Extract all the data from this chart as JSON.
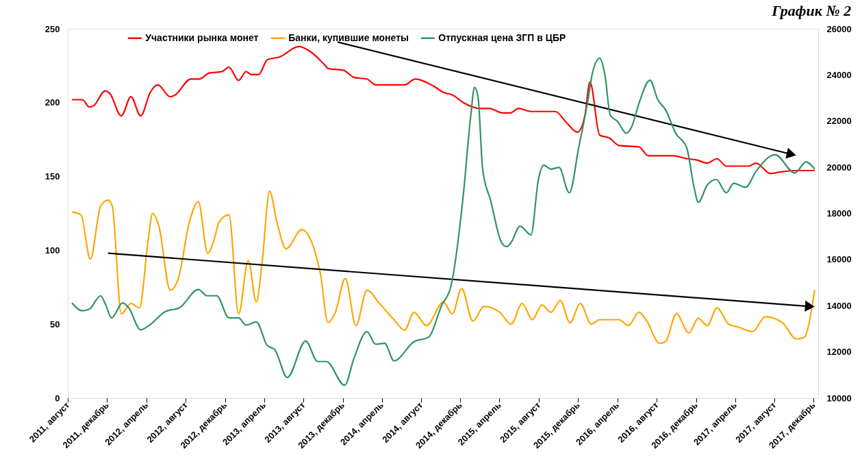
{
  "chart_data": {
    "type": "line",
    "title": "График № 2",
    "marker": "none",
    "grid": false,
    "legend": "top",
    "line_style": "solid",
    "xlim": [
      "2011-08-01",
      "2017-12-15"
    ],
    "xticks": [
      {
        "value": "2011-08",
        "label": "2011, август"
      },
      {
        "value": "2011-12",
        "label": "2011, декабрь"
      },
      {
        "value": "2012-04",
        "label": "2012, апрель"
      },
      {
        "value": "2012-08",
        "label": "2012, август"
      },
      {
        "value": "2012-12",
        "label": "2012, декабрь"
      },
      {
        "value": "2013-04",
        "label": "2013, апрель"
      },
      {
        "value": "2013-08",
        "label": "2013, август"
      },
      {
        "value": "2013-12",
        "label": "2013, декабрь"
      },
      {
        "value": "2014-04",
        "label": "2014, апрель"
      },
      {
        "value": "2014-08",
        "label": "2014, август"
      },
      {
        "value": "2014-12",
        "label": "2014, декабрь"
      },
      {
        "value": "2015-04",
        "label": "2015, апрель"
      },
      {
        "value": "2015-08",
        "label": "2015, август"
      },
      {
        "value": "2015-12",
        "label": "2015, декабрь"
      },
      {
        "value": "2016-04",
        "label": "2016, апрель"
      },
      {
        "value": "2016-08",
        "label": "2016, август"
      },
      {
        "value": "2016-12",
        "label": "2016, декабрь"
      },
      {
        "value": "2017-04",
        "label": "2017, апрель"
      },
      {
        "value": "2017-08",
        "label": "2017, август"
      },
      {
        "value": "2017-12",
        "label": "2017, декабрь"
      }
    ],
    "ylim": [
      0,
      250
    ],
    "yticks": [
      0,
      50,
      100,
      150,
      200,
      250
    ],
    "y2lim": [
      10000,
      26000
    ],
    "y2ticks": [
      10000,
      12000,
      14000,
      16000,
      18000,
      20000,
      22000,
      24000,
      26000
    ],
    "series": [
      {
        "name": "Участники рынка монет",
        "color": "#ff0000",
        "x": [
          "2011-08-14",
          "2011-09-15",
          "2011-10-07",
          "2011-10-21",
          "2011-11-25",
          "2011-12-10",
          "2012-01-14",
          "2012-02-13",
          "2012-03-14",
          "2012-04-13",
          "2012-05-06",
          "2012-06-14",
          "2012-06-28",
          "2012-08-17",
          "2012-09-13",
          "2012-10-12",
          "2012-11-21",
          "2012-12-13",
          "2013-01-12",
          "2013-02-04",
          "2013-02-20",
          "2013-03-15",
          "2013-04-11",
          "2013-05-20",
          "2013-07-18",
          "2013-08-26",
          "2013-10-04",
          "2013-10-18",
          "2013-12-02",
          "2014-01-06",
          "2014-02-14",
          "2014-03-13",
          "2014-06-11",
          "2014-07-14",
          "2014-09-10",
          "2014-10-09",
          "2014-11-08",
          "2014-12-10",
          "2015-02-01",
          "2015-02-28",
          "2015-04-12",
          "2015-05-05",
          "2015-05-30",
          "2015-07-08",
          "2015-09-21",
          "2015-10-28",
          "2015-11-29",
          "2015-12-22",
          "2016-01-07",
          "2016-02-06",
          "2016-03-07",
          "2016-04-06",
          "2016-06-07",
          "2016-07-06",
          "2016-09-19",
          "2016-11-04",
          "2016-12-06",
          "2017-01-05",
          "2017-02-04",
          "2017-03-05",
          "2017-05-13",
          "2017-06-05",
          "2017-07-20",
          "2017-08-19",
          "2017-10-04",
          "2017-12-04"
        ],
        "values": [
          202,
          202,
          197,
          198,
          208,
          206,
          191,
          204,
          191,
          207,
          212,
          204,
          205,
          216,
          216,
          220,
          221,
          224,
          215,
          221,
          219,
          219,
          229,
          231,
          238,
          234,
          226,
          223,
          222,
          217,
          216,
          212,
          212,
          216,
          211,
          207,
          205,
          200,
          196,
          196,
          193,
          193,
          196,
          194,
          194,
          186,
          180,
          191,
          214,
          178,
          176,
          171,
          170,
          164,
          164,
          162,
          161,
          159,
          162,
          157,
          157,
          159,
          152,
          153,
          154,
          154
        ]
      },
      {
        "name": "Банки, купившие монеты",
        "color": "#ffa500",
        "x": [
          "2011-08-14",
          "2011-09-11",
          "2011-10-10",
          "2011-11-11",
          "2011-12-04",
          "2011-12-17",
          "2012-01-14",
          "2012-02-13",
          "2012-03-10",
          "2012-04-07",
          "2012-04-20",
          "2012-05-10",
          "2012-06-14",
          "2012-07-09",
          "2012-08-12",
          "2012-09-09",
          "2012-10-08",
          "2012-10-29",
          "2012-11-12",
          "2012-12-13",
          "2013-01-12",
          "2013-02-11",
          "2013-03-08",
          "2013-03-26",
          "2013-04-18",
          "2013-05-11",
          "2013-06-08",
          "2013-07-27",
          "2013-09-03",
          "2013-09-23",
          "2013-10-16",
          "2013-11-08",
          "2013-12-09",
          "2014-01-11",
          "2014-02-14",
          "2014-03-25",
          "2014-05-09",
          "2014-06-11",
          "2014-07-10",
          "2014-08-18",
          "2014-10-09",
          "2014-11-06",
          "2014-12-05",
          "2015-01-09",
          "2015-02-12",
          "2015-04-02",
          "2015-05-07",
          "2015-06-11",
          "2015-07-12",
          "2015-08-11",
          "2015-09-08",
          "2015-10-07",
          "2015-11-06",
          "2015-12-08",
          "2016-01-11",
          "2016-02-06",
          "2016-04-06",
          "2016-05-05",
          "2016-06-07",
          "2016-06-29",
          "2016-08-10",
          "2016-08-28",
          "2016-10-01",
          "2016-11-09",
          "2016-12-08",
          "2017-01-05",
          "2017-02-04",
          "2017-03-12",
          "2017-04-11",
          "2017-05-26",
          "2017-07-04",
          "2017-08-26",
          "2017-10-08",
          "2017-11-01",
          "2017-12-04"
        ],
        "values": [
          126,
          124,
          94,
          130,
          134,
          130,
          57,
          64,
          61,
          108,
          125,
          116,
          73,
          81,
          119,
          133,
          98,
          108,
          119,
          124,
          57,
          93,
          65,
          92,
          140,
          119,
          101,
          114,
          101,
          84,
          51,
          58,
          81,
          49,
          73,
          64,
          53,
          46,
          58,
          49,
          65,
          57,
          74,
          52,
          62,
          58,
          50,
          64,
          53,
          63,
          58,
          66,
          51,
          64,
          50,
          53,
          53,
          49,
          58,
          53,
          37,
          38,
          57,
          44,
          54,
          49,
          61,
          50,
          48,
          45,
          55,
          51,
          40,
          41,
          73
        ]
      },
      {
        "name": "Отпускная цена ЗГП в ЦБР",
        "color": "#2e9463",
        "axis": "y2",
        "x": [
          "2011-08-14",
          "2011-09-15",
          "2011-10-07",
          "2011-11-11",
          "2011-11-25",
          "2011-12-15",
          "2012-01-18",
          "2012-02-06",
          "2012-03-14",
          "2012-04-07",
          "2012-05-29",
          "2012-07-13",
          "2012-09-09",
          "2012-10-06",
          "2012-11-05",
          "2012-12-13",
          "2013-01-12",
          "2013-02-04",
          "2013-03-08",
          "2013-04-11",
          "2013-05-04",
          "2013-06-12",
          "2013-08-08",
          "2013-09-14",
          "2013-10-11",
          "2013-12-07",
          "2014-01-04",
          "2014-02-14",
          "2014-03-13",
          "2014-04-10",
          "2014-05-09",
          "2014-07-10",
          "2014-08-25",
          "2014-10-03",
          "2014-11-02",
          "2014-12-10",
          "2015-01-02",
          "2015-01-14",
          "2015-01-25",
          "2015-02-08",
          "2015-03-05",
          "2015-04-08",
          "2015-04-24",
          "2015-05-07",
          "2015-06-04",
          "2015-07-08",
          "2015-07-31",
          "2015-08-16",
          "2015-09-08",
          "2015-10-03",
          "2015-11-04",
          "2015-12-03",
          "2016-01-02",
          "2016-01-14",
          "2016-02-06",
          "2016-02-22",
          "2016-03-10",
          "2016-04-02",
          "2016-04-29",
          "2016-05-15",
          "2016-06-07",
          "2016-07-11",
          "2016-08-05",
          "2016-08-28",
          "2016-09-29",
          "2016-11-02",
          "2016-11-25",
          "2016-12-08",
          "2017-01-05",
          "2017-02-02",
          "2017-03-05",
          "2017-03-28",
          "2017-05-04",
          "2017-06-05",
          "2017-08-03",
          "2017-10-04",
          "2017-11-07",
          "2017-12-04"
        ],
        "values": [
          14120,
          13780,
          13850,
          14430,
          14090,
          13470,
          14120,
          13910,
          12950,
          13120,
          13740,
          13910,
          14700,
          14430,
          14430,
          13470,
          13470,
          13160,
          13300,
          12270,
          12100,
          10890,
          12470,
          11580,
          11580,
          10550,
          11680,
          12880,
          12330,
          12370,
          11610,
          12440,
          12640,
          13980,
          14870,
          18790,
          22220,
          23460,
          23010,
          19920,
          18550,
          16730,
          16560,
          16730,
          17450,
          17070,
          19470,
          20090,
          19920,
          19990,
          18890,
          20850,
          23010,
          24040,
          24730,
          24040,
          22260,
          21980,
          21470,
          21740,
          22770,
          23770,
          22910,
          22500,
          21470,
          20850,
          19130,
          18480,
          19230,
          19470,
          18890,
          19300,
          19130,
          19820,
          20540,
          19750,
          20230,
          19920
        ]
      },
      {
        "color": "#000000",
        "marker": "triangle",
        "x": [
          "2013-11-15",
          "2017-09-23"
        ],
        "values": [
          241,
          165
        ]
      },
      {
        "color": "#000000",
        "marker": "triangle",
        "x": [
          "2011-12-04",
          "2017-11-19"
        ],
        "values": [
          98,
          62
        ]
      }
    ]
  }
}
